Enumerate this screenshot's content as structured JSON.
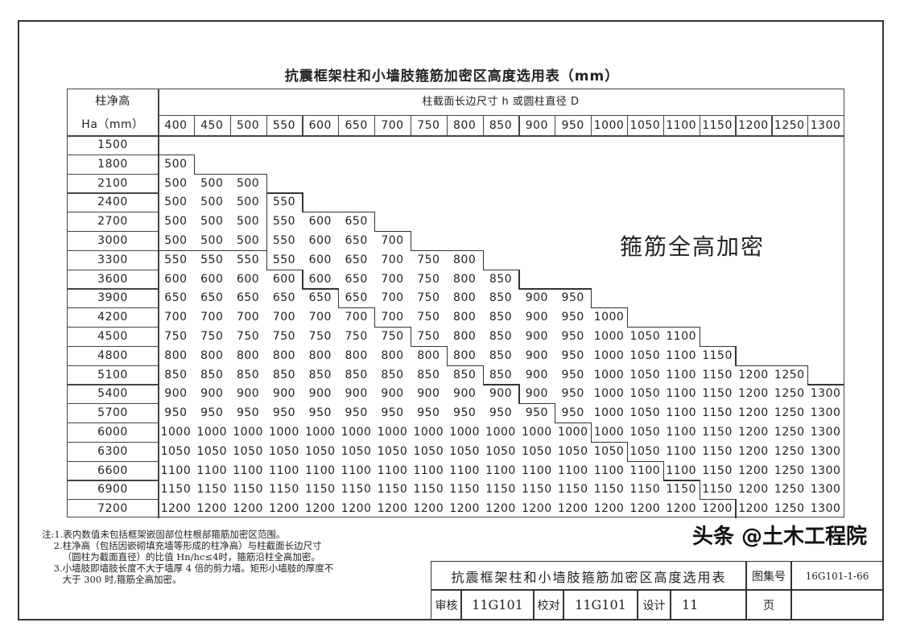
{
  "title": "抗震框架柱和小墙肢箍筋加密区高度选用表（mm）",
  "table": {
    "row_header_line1": "柱净高",
    "row_header_line2": "Ha（mm）",
    "column_group_header": "柱截面长边尺寸 h 或圆柱直径 D",
    "columns": [
      "400",
      "450",
      "500",
      "550",
      "600",
      "650",
      "700",
      "750",
      "800",
      "850",
      "900",
      "950",
      "1000",
      "1050",
      "1100",
      "1150",
      "1200",
      "1250",
      "1300"
    ],
    "full_height_label": "箍筋全高加密",
    "rows": [
      {
        "ha": "1500",
        "values": []
      },
      {
        "ha": "1800",
        "values": [
          "500"
        ]
      },
      {
        "ha": "2100",
        "values": [
          "500",
          "500",
          "500"
        ]
      },
      {
        "ha": "2400",
        "values": [
          "500",
          "500",
          "500",
          "550"
        ]
      },
      {
        "ha": "2700",
        "values": [
          "500",
          "500",
          "500",
          "550",
          "600",
          "650"
        ]
      },
      {
        "ha": "3000",
        "values": [
          "500",
          "500",
          "500",
          "550",
          "600",
          "650",
          "700"
        ]
      },
      {
        "ha": "3300",
        "values": [
          "550",
          "550",
          "550",
          "550",
          "600",
          "650",
          "700",
          "750",
          "800"
        ]
      },
      {
        "ha": "3600",
        "values": [
          "600",
          "600",
          "600",
          "600",
          "600",
          "650",
          "700",
          "750",
          "800",
          "850"
        ]
      },
      {
        "ha": "3900",
        "values": [
          "650",
          "650",
          "650",
          "650",
          "650",
          "650",
          "700",
          "750",
          "800",
          "850",
          "900",
          "950"
        ]
      },
      {
        "ha": "4200",
        "values": [
          "700",
          "700",
          "700",
          "700",
          "700",
          "700",
          "700",
          "750",
          "800",
          "850",
          "900",
          "950",
          "1000"
        ]
      },
      {
        "ha": "4500",
        "values": [
          "750",
          "750",
          "750",
          "750",
          "750",
          "750",
          "750",
          "750",
          "800",
          "850",
          "900",
          "950",
          "1000",
          "1050",
          "1100"
        ]
      },
      {
        "ha": "4800",
        "values": [
          "800",
          "800",
          "800",
          "800",
          "800",
          "800",
          "800",
          "800",
          "800",
          "850",
          "900",
          "950",
          "1000",
          "1050",
          "1100",
          "1150"
        ]
      },
      {
        "ha": "5100",
        "values": [
          "850",
          "850",
          "850",
          "850",
          "850",
          "850",
          "850",
          "850",
          "850",
          "850",
          "900",
          "950",
          "1000",
          "1050",
          "1100",
          "1150",
          "1200",
          "1250"
        ]
      },
      {
        "ha": "5400",
        "values": [
          "900",
          "900",
          "900",
          "900",
          "900",
          "900",
          "900",
          "900",
          "900",
          "900",
          "900",
          "950",
          "1000",
          "1050",
          "1100",
          "1150",
          "1200",
          "1250",
          "1300"
        ]
      },
      {
        "ha": "5700",
        "values": [
          "950",
          "950",
          "950",
          "950",
          "950",
          "950",
          "950",
          "950",
          "950",
          "950",
          "950",
          "950",
          "1000",
          "1050",
          "1100",
          "1150",
          "1200",
          "1250",
          "1300"
        ]
      },
      {
        "ha": "6000",
        "values": [
          "1000",
          "1000",
          "1000",
          "1000",
          "1000",
          "1000",
          "1000",
          "1000",
          "1000",
          "1000",
          "1000",
          "1000",
          "1000",
          "1050",
          "1100",
          "1150",
          "1200",
          "1250",
          "1300"
        ]
      },
      {
        "ha": "6300",
        "values": [
          "1050",
          "1050",
          "1050",
          "1050",
          "1050",
          "1050",
          "1050",
          "1050",
          "1050",
          "1050",
          "1050",
          "1050",
          "1050",
          "1050",
          "1100",
          "1150",
          "1200",
          "1250",
          "1300"
        ]
      },
      {
        "ha": "6600",
        "values": [
          "1100",
          "1100",
          "1100",
          "1100",
          "1100",
          "1100",
          "1100",
          "1100",
          "1100",
          "1100",
          "1100",
          "1100",
          "1100",
          "1100",
          "1100",
          "1150",
          "1200",
          "1250",
          "1300"
        ]
      },
      {
        "ha": "6900",
        "values": [
          "1150",
          "1150",
          "1150",
          "1150",
          "1150",
          "1150",
          "1150",
          "1150",
          "1150",
          "1150",
          "1150",
          "1150",
          "1150",
          "1150",
          "1150",
          "1150",
          "1200",
          "1250",
          "1300"
        ]
      },
      {
        "ha": "7200",
        "values": [
          "1200",
          "1200",
          "1200",
          "1200",
          "1200",
          "1200",
          "1200",
          "1200",
          "1200",
          "1200",
          "1200",
          "1200",
          "1200",
          "1200",
          "1200",
          "1200",
          "1200",
          "1250",
          "1300"
        ]
      }
    ]
  },
  "notes": "注:1.表内数值未包括框架嵌固部位柱根部箍筋加密区范围。\n    2.柱净高（包括因嵌砌填充墙等形成的柱净高）与柱截面长边尺寸\n       （圆柱为截面直径）的比值 Hn/hc≤4时，箍筋沿柱全高加密。\n    3.小墙肢即墙肢长度不大于墙厚 4 倍的剪力墙。矩形小墙肢的厚度不\n       大于 300 时,箍筋全高加密。",
  "title_block": {
    "drawing_title": "抗震框架柱和小墙肢箍筋加密区高度选用表",
    "atlas_label": "图集号",
    "atlas_no": "16G101-1-66",
    "review_label": "审核",
    "review_value": "11G101",
    "check_label": "校对",
    "check_value": "11G101",
    "design_label": "设计",
    "design_value": "11",
    "page_label": "页"
  },
  "watermark": "头条 @土木工程院"
}
